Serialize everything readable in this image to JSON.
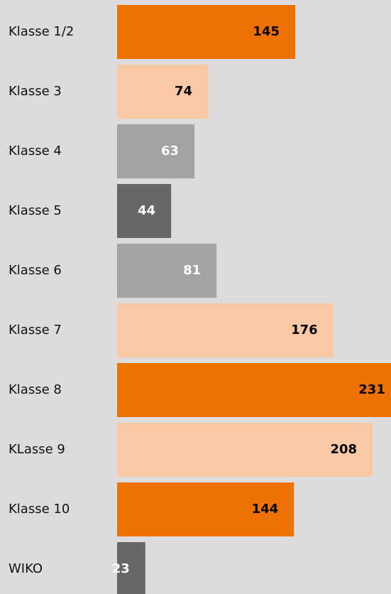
{
  "chart_data": {
    "type": "bar",
    "orientation": "horizontal",
    "categories": [
      "Klasse 1/2",
      "Klasse 3",
      "Klasse 4",
      "Klasse 5",
      "Klasse 6",
      "Klasse 7",
      "Klasse 8",
      "KLasse 9",
      "Klasse 10",
      "WIKO"
    ],
    "values": [
      145,
      74,
      63,
      44,
      81,
      176,
      231,
      208,
      144,
      23
    ],
    "colors": [
      "#ee7203",
      "#f9c9a6",
      "#a3a3a3",
      "#676767",
      "#a3a3a3",
      "#f9c9a6",
      "#ee7203",
      "#f9c9a6",
      "#ee7203",
      "#676767"
    ]
  }
}
